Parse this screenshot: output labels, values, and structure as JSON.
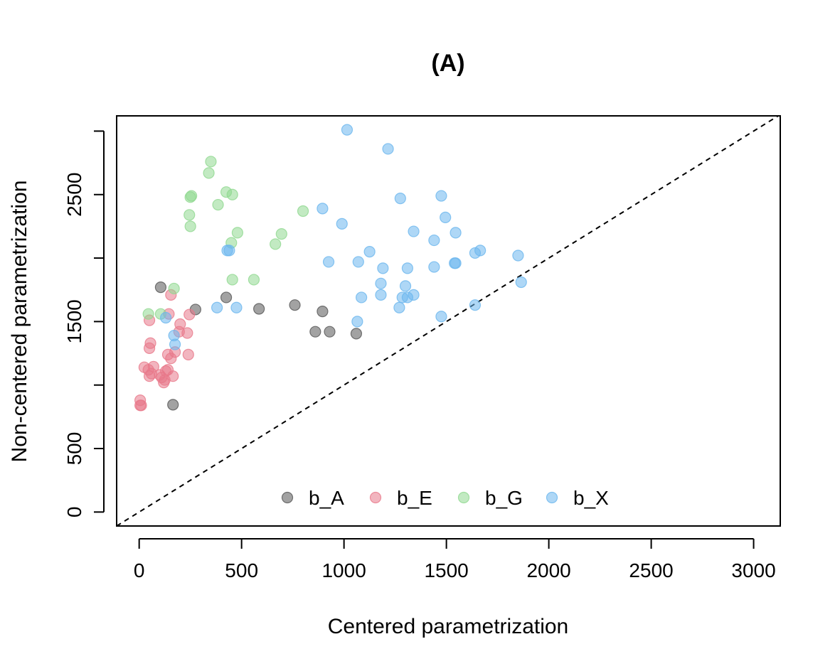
{
  "chart_data": {
    "type": "scatter",
    "title": "(A)",
    "xlabel": "Centered parametrization",
    "ylabel": "Non-centered parametrization",
    "xlim": [
      -110,
      3130
    ],
    "ylim": [
      -110,
      3120
    ],
    "xticks": [
      0,
      500,
      1000,
      1500,
      2000,
      2500,
      3000
    ],
    "yticks": [
      0,
      500,
      1500,
      2500
    ],
    "y_minor_ticks": [
      1000,
      2000,
      3000
    ],
    "grid": false,
    "legend_position": "bottom-center",
    "reference_line": "y = x (dashed)",
    "series": [
      {
        "name": "b_A",
        "color": "#555555",
        "points": [
          [
            105,
            1770
          ],
          [
            275,
            1595
          ],
          [
            425,
            1690
          ],
          [
            585,
            1600
          ],
          [
            760,
            1630
          ],
          [
            895,
            1580
          ],
          [
            860,
            1420
          ],
          [
            930,
            1420
          ],
          [
            1060,
            1405
          ],
          [
            165,
            845
          ]
        ]
      },
      {
        "name": "b_E",
        "color": "#E8788A",
        "points": [
          [
            155,
            1710
          ],
          [
            50,
            1510
          ],
          [
            145,
            1560
          ],
          [
            245,
            1555
          ],
          [
            200,
            1480
          ],
          [
            195,
            1420
          ],
          [
            235,
            1410
          ],
          [
            55,
            1330
          ],
          [
            50,
            1290
          ],
          [
            175,
            1260
          ],
          [
            140,
            1240
          ],
          [
            240,
            1240
          ],
          [
            155,
            1210
          ],
          [
            25,
            1140
          ],
          [
            70,
            1145
          ],
          [
            140,
            1120
          ],
          [
            130,
            1110
          ],
          [
            45,
            1120
          ],
          [
            60,
            1090
          ],
          [
            50,
            1070
          ],
          [
            100,
            1080
          ],
          [
            110,
            1060
          ],
          [
            125,
            1040
          ],
          [
            165,
            1070
          ],
          [
            120,
            1020
          ],
          [
            5,
            880
          ],
          [
            5,
            840
          ],
          [
            10,
            840
          ]
        ]
      },
      {
        "name": "b_G",
        "color": "#90D890",
        "points": [
          [
            350,
            2760
          ],
          [
            340,
            2670
          ],
          [
            255,
            2490
          ],
          [
            250,
            2480
          ],
          [
            425,
            2520
          ],
          [
            455,
            2500
          ],
          [
            385,
            2420
          ],
          [
            245,
            2340
          ],
          [
            800,
            2370
          ],
          [
            250,
            2250
          ],
          [
            480,
            2200
          ],
          [
            695,
            2190
          ],
          [
            450,
            2120
          ],
          [
            665,
            2110
          ],
          [
            455,
            1830
          ],
          [
            560,
            1830
          ],
          [
            170,
            1760
          ],
          [
            45,
            1560
          ],
          [
            105,
            1560
          ]
        ]
      },
      {
        "name": "b_X",
        "color": "#6BB6EE",
        "points": [
          [
            1015,
            3010
          ],
          [
            1215,
            2860
          ],
          [
            1475,
            2490
          ],
          [
            1275,
            2470
          ],
          [
            895,
            2390
          ],
          [
            1495,
            2320
          ],
          [
            990,
            2270
          ],
          [
            1340,
            2210
          ],
          [
            1545,
            2200
          ],
          [
            1440,
            2140
          ],
          [
            430,
            2060
          ],
          [
            440,
            2060
          ],
          [
            1125,
            2050
          ],
          [
            1640,
            2040
          ],
          [
            1665,
            2060
          ],
          [
            1850,
            2020
          ],
          [
            925,
            1970
          ],
          [
            1070,
            1970
          ],
          [
            1540,
            1960
          ],
          [
            1545,
            1960
          ],
          [
            1190,
            1920
          ],
          [
            1310,
            1920
          ],
          [
            1440,
            1930
          ],
          [
            1865,
            1810
          ],
          [
            1180,
            1800
          ],
          [
            1300,
            1780
          ],
          [
            1180,
            1710
          ],
          [
            1340,
            1710
          ],
          [
            1085,
            1690
          ],
          [
            1285,
            1690
          ],
          [
            1310,
            1690
          ],
          [
            1270,
            1610
          ],
          [
            1640,
            1630
          ],
          [
            380,
            1610
          ],
          [
            475,
            1610
          ],
          [
            1475,
            1540
          ],
          [
            1065,
            1500
          ],
          [
            130,
            1530
          ],
          [
            170,
            1390
          ],
          [
            175,
            1320
          ]
        ]
      }
    ]
  }
}
